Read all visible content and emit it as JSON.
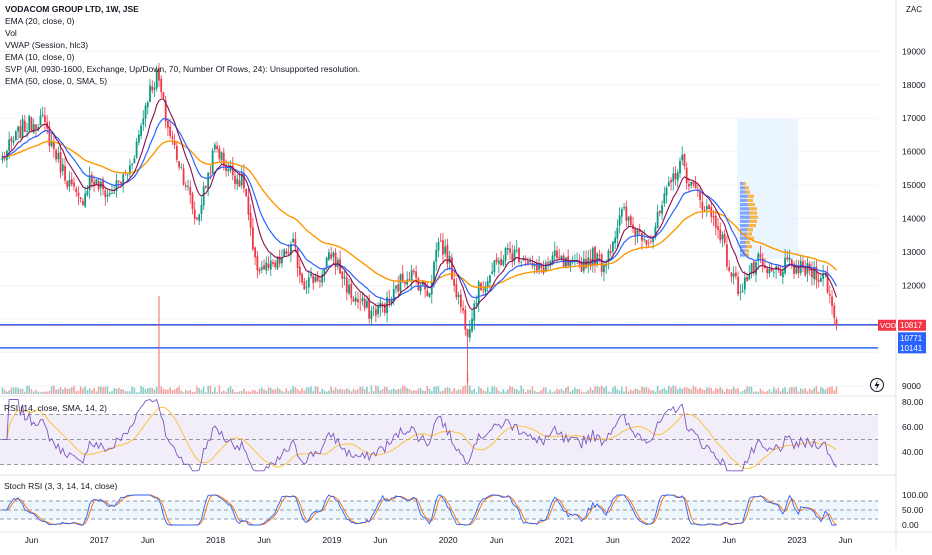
{
  "header": {
    "title": "VODACOM GROUP LTD, 1W, JSE",
    "indicators": [
      "EMA (20, close, 0)",
      "Vol",
      "VWAP (Session, hlc3)",
      "EMA (10, close, 0)",
      "SVP (All, 0930-1600, Exchange, Up/Down, 70, Number Of Rows, 24): Unsupported resolution.",
      "EMA (50, close, 0, SMA, 5)"
    ],
    "currency": "ZAC"
  },
  "rsi_label": "RSI (14, close, SMA, 14, 2)",
  "stoch_label": "Stoch RSI (3, 3, 14, 14, close)",
  "price_tags": [
    {
      "label": "VOD",
      "value": "10817",
      "color": "#f23645"
    },
    {
      "value": "10771",
      "color": "#2962ff"
    },
    {
      "value": "10141",
      "color": "#2962ff"
    }
  ],
  "colors": {
    "up": "#089981",
    "down": "#f23645",
    "ema10": "#880e4f",
    "ema20": "#2962ff",
    "ema50": "#ff9800",
    "hline": "#2962ff",
    "rsi": "#7e57c2",
    "rsi_ma": "#fbc02d",
    "stoch_k": "#2962ff",
    "stoch_d": "#ff6d00"
  },
  "chart_data": [
    {
      "type": "candlestick",
      "title": "VODACOM GROUP LTD, 1W, JSE",
      "y_unit": "ZAC",
      "ylim": [
        8600,
        19600
      ],
      "y_ticks": [
        9000,
        10000,
        11000,
        12000,
        13000,
        14000,
        15000,
        16000,
        17000,
        18000,
        19000
      ],
      "x_ticks": [
        "Jun",
        "2017",
        "Jun",
        "2018",
        "Jun",
        "2019",
        "Jun",
        "2020",
        "Jun",
        "2021",
        "Jun",
        "2022",
        "Jun",
        "2023",
        "Jun"
      ],
      "close_path": [
        [
          "2016-03",
          15800
        ],
        [
          "2016-05",
          16700
        ],
        [
          "2016-07",
          17000
        ],
        [
          "2016-09",
          15600
        ],
        [
          "2016-11",
          14400
        ],
        [
          "2016-12",
          15200
        ],
        [
          "2017-02",
          14700
        ],
        [
          "2017-04",
          15400
        ],
        [
          "2017-05",
          16400
        ],
        [
          "2017-06",
          17700
        ],
        [
          "2017-07",
          18300
        ],
        [
          "2017-08",
          16800
        ],
        [
          "2017-10",
          15000
        ],
        [
          "2017-11",
          13900
        ],
        [
          "2018-01",
          16200
        ],
        [
          "2018-02",
          15600
        ],
        [
          "2018-04",
          15000
        ],
        [
          "2018-05",
          12600
        ],
        [
          "2018-07",
          12500
        ],
        [
          "2018-09",
          13200
        ],
        [
          "2018-10",
          12100
        ],
        [
          "2018-12",
          12300
        ],
        [
          "2019-01",
          13000
        ],
        [
          "2019-03",
          11700
        ],
        [
          "2019-05",
          11200
        ],
        [
          "2019-07",
          11500
        ],
        [
          "2019-08",
          12100
        ],
        [
          "2019-09",
          12400
        ],
        [
          "2019-11",
          11800
        ],
        [
          "2019-12",
          13400
        ],
        [
          "2020-01",
          12800
        ],
        [
          "2020-02",
          11700
        ],
        [
          "2020-03",
          10700
        ],
        [
          "2020-04",
          11800
        ],
        [
          "2020-06",
          12600
        ],
        [
          "2020-07",
          13000
        ],
        [
          "2020-09",
          12900
        ],
        [
          "2020-10",
          12400
        ],
        [
          "2020-12",
          12800
        ],
        [
          "2021-02",
          12500
        ],
        [
          "2021-04",
          12900
        ],
        [
          "2021-05",
          12600
        ],
        [
          "2021-07",
          14200
        ],
        [
          "2021-08",
          13700
        ],
        [
          "2021-10",
          13400
        ],
        [
          "2021-11",
          14300
        ],
        [
          "2022-01",
          15800
        ],
        [
          "2022-02",
          15000
        ],
        [
          "2022-03",
          14600
        ],
        [
          "2022-05",
          13700
        ],
        [
          "2022-06",
          12500
        ],
        [
          "2022-07",
          11900
        ],
        [
          "2022-09",
          12700
        ],
        [
          "2022-10",
          12300
        ],
        [
          "2022-12",
          12600
        ],
        [
          "2023-01",
          12500
        ],
        [
          "2023-03",
          12400
        ],
        [
          "2023-04",
          12200
        ],
        [
          "2023-05",
          10800
        ]
      ],
      "extremes": {
        "high": 18650,
        "low": 9100
      },
      "last_close": 10817,
      "horizontal_lines": [
        10771,
        10141
      ]
    },
    {
      "type": "bar",
      "series": [
        {
          "name": "Vol"
        }
      ]
    },
    {
      "type": "line",
      "title": "RSI (14, close, SMA, 14, 2)",
      "ylim": [
        25,
        85
      ],
      "y_ticks": [
        40,
        60,
        80
      ],
      "y_tick_labels": [
        "40.00",
        "60.00",
        "80.00"
      ],
      "bands": [
        30,
        50,
        70
      ]
    },
    {
      "type": "line",
      "title": "Stoch RSI (3, 3, 14, 14, close)",
      "ylim": [
        -10,
        110
      ],
      "y_ticks": [
        0,
        50,
        100
      ],
      "y_tick_labels": [
        "0.00",
        "50.00",
        "100.00"
      ],
      "bands": [
        20,
        50,
        80
      ]
    }
  ]
}
